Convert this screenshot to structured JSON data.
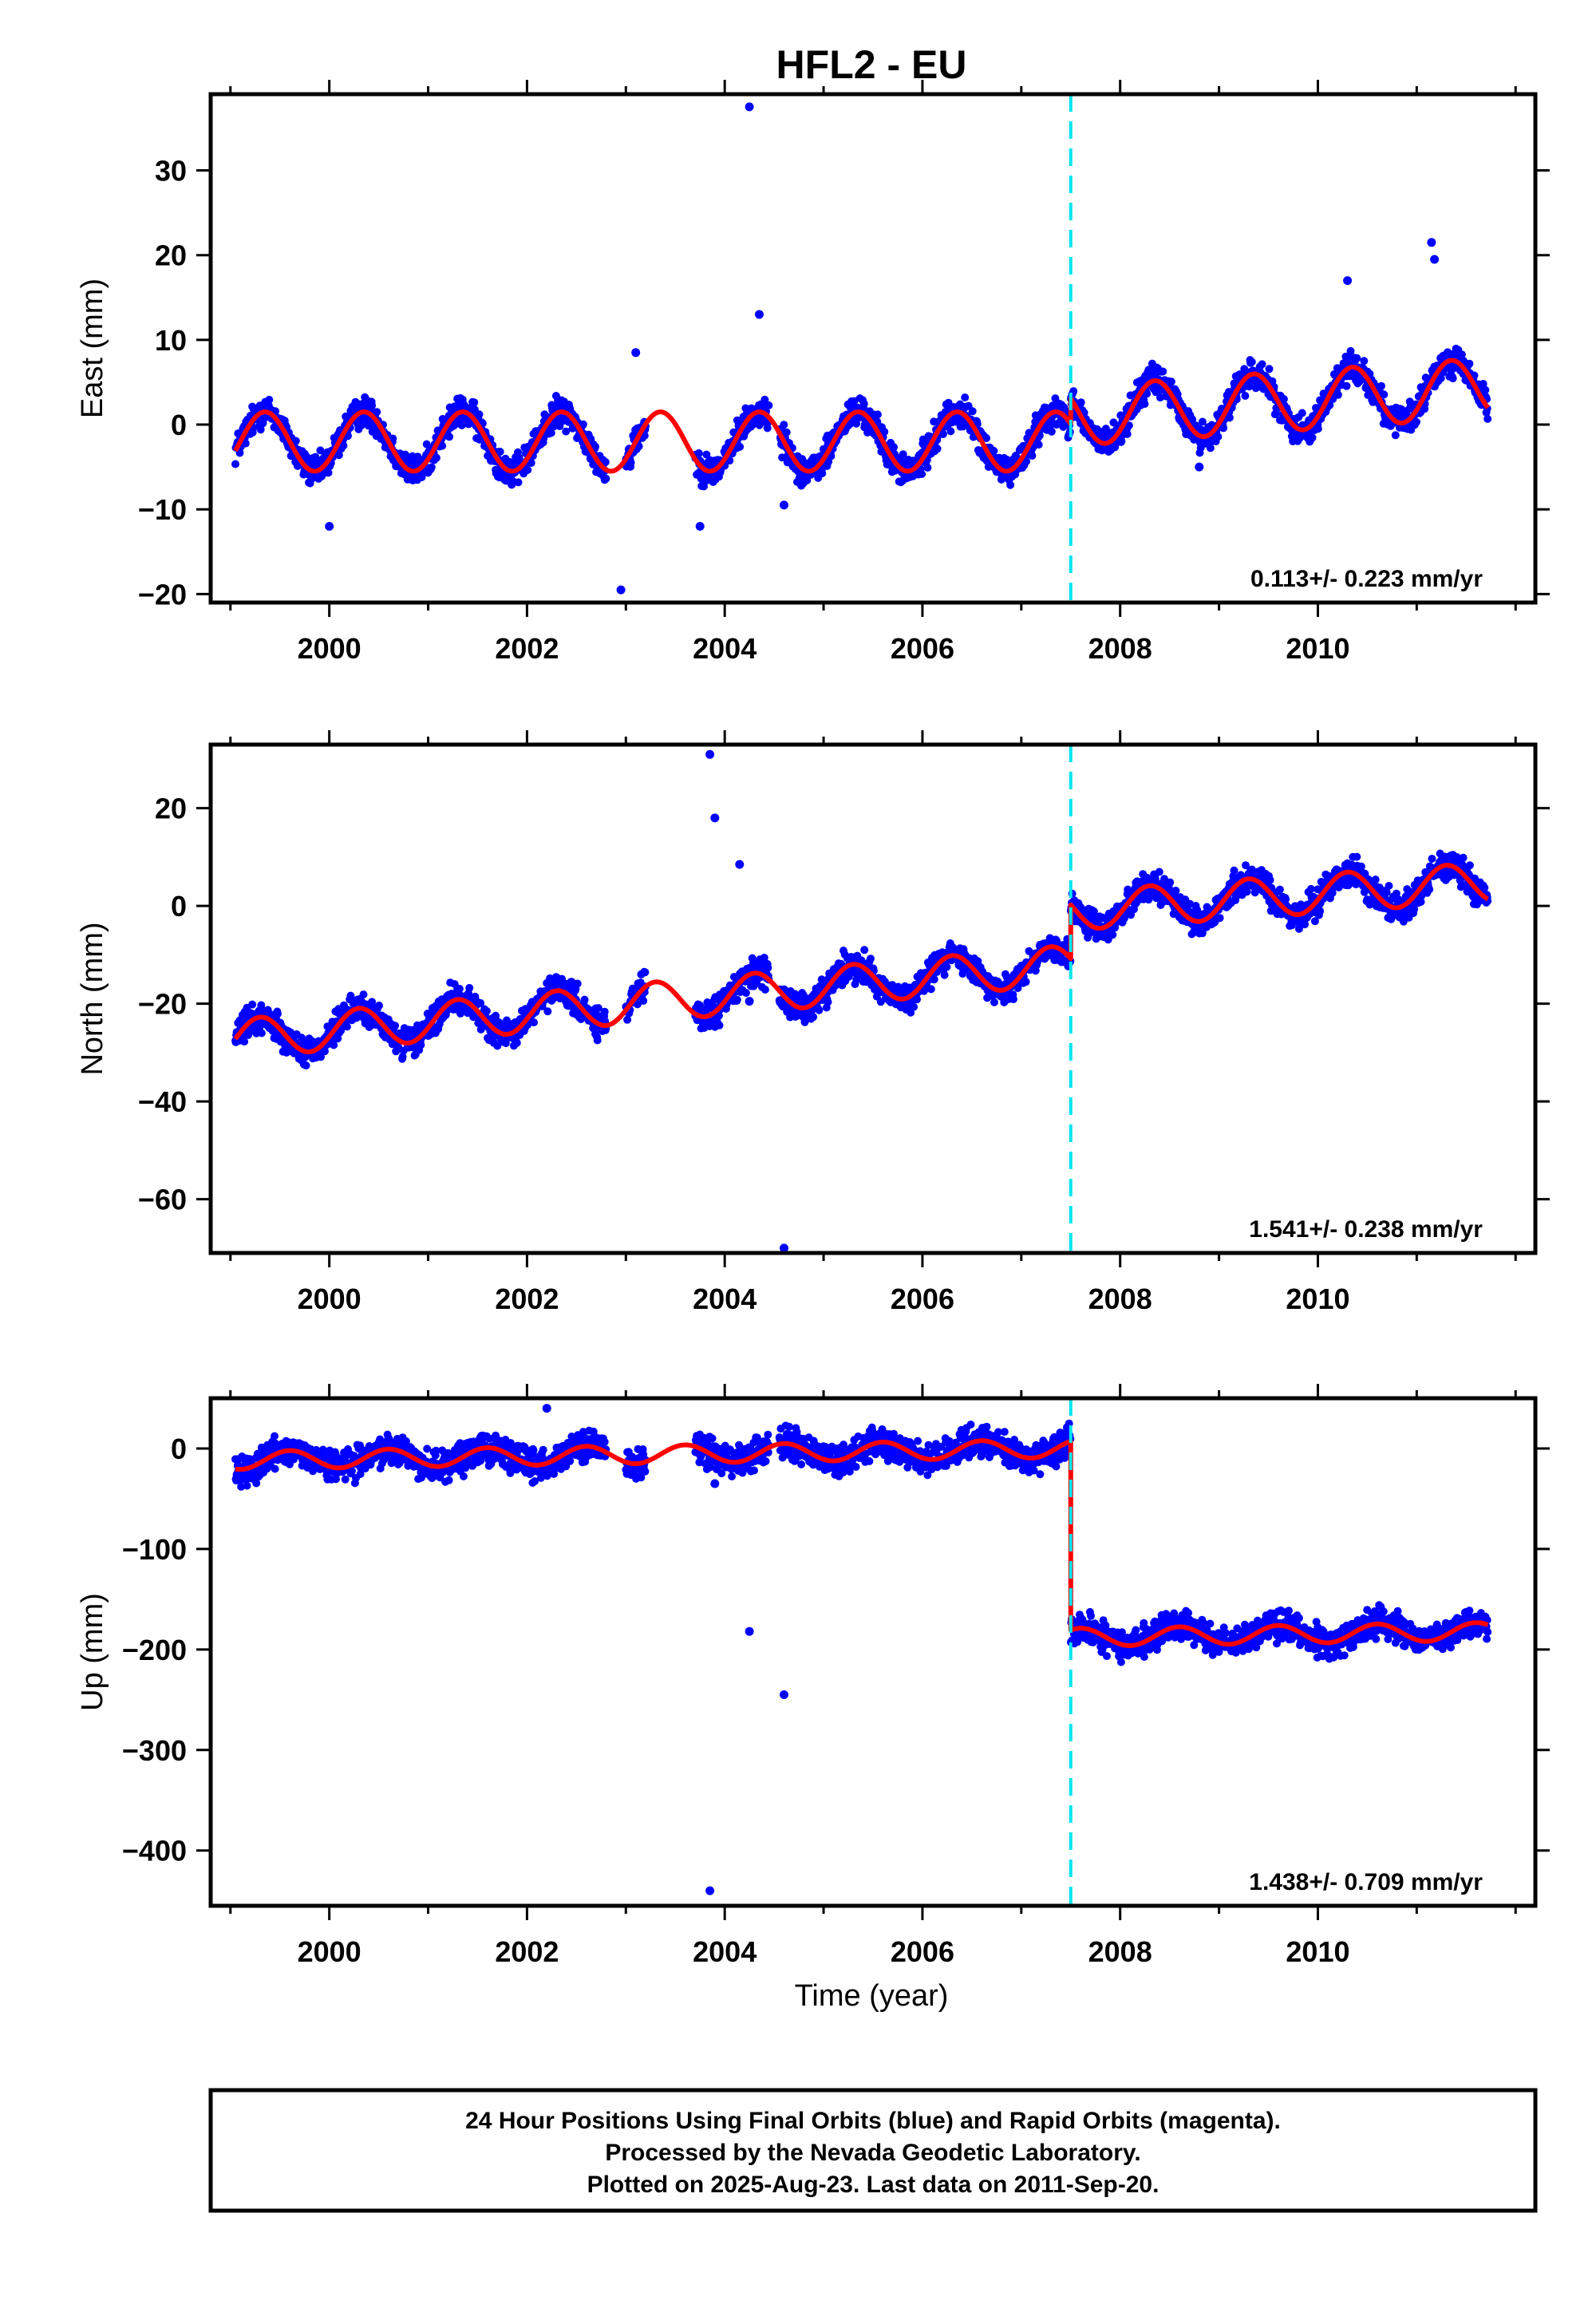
{
  "title": "HFL2 - EU",
  "xlabel": "Time (year)",
  "colors": {
    "points": "#0000ff",
    "model": "#ff0000",
    "break_line": "#00e5ee",
    "frame": "#000000"
  },
  "chart_data": [
    {
      "type": "scatter",
      "panel": "east",
      "ylabel": "East (mm)",
      "ylim": [
        -21,
        39
      ],
      "xlim": [
        1998.8,
        2012.2
      ],
      "yticks": [
        -20,
        -10,
        0,
        10,
        20,
        30
      ],
      "xticks": [
        2000,
        2002,
        2004,
        2006,
        2008,
        2010
      ],
      "rate_label": "0.113+/- 0.223 mm/yr",
      "break_epoch": 2007.5,
      "series": [
        {
          "name": "",
          "model": {
            "start": 1999.05,
            "end": 2011.72,
            "offset_before": -2.0,
            "offset_after": 1.0,
            "trend_before": 0.0,
            "trend_after": 0.8,
            "amplitude": 3.5,
            "peak_phase": 0.35
          }
        }
      ],
      "outliers": [
        [
          2004.25,
          37.5
        ],
        [
          2004.35,
          13.0
        ],
        [
          2002.95,
          -19.5
        ],
        [
          2003.1,
          8.5
        ],
        [
          2003.75,
          -12.0
        ],
        [
          2011.15,
          21.5
        ],
        [
          2011.18,
          19.5
        ],
        [
          2010.3,
          17.0
        ],
        [
          2008.8,
          -5.0
        ],
        [
          2000.0,
          -12.0
        ],
        [
          2004.6,
          -9.5
        ]
      ]
    },
    {
      "type": "scatter",
      "panel": "north",
      "ylabel": "North (mm)",
      "ylim": [
        -71,
        33
      ],
      "xlim": [
        1998.8,
        2012.2
      ],
      "yticks": [
        -60,
        -40,
        -20,
        0,
        20
      ],
      "xticks": [
        2000,
        2002,
        2004,
        2006,
        2008,
        2010
      ],
      "rate_label": "1.541+/- 0.238 mm/yr",
      "break_epoch": 2007.5,
      "series": [
        {
          "name": "",
          "model": {
            "start": 1999.05,
            "end": 2011.72,
            "offset_before": -12.0,
            "offset_after": -1.0,
            "trend_before": 1.8,
            "trend_after": 1.4,
            "amplitude": 4.0,
            "peak_phase": 0.3
          }
        }
      ],
      "outliers": [
        [
          2003.85,
          31.0
        ],
        [
          2003.9,
          18.0
        ],
        [
          2004.25,
          -19.5
        ],
        [
          2004.6,
          -70.0
        ],
        [
          2004.15,
          8.5
        ]
      ]
    },
    {
      "type": "scatter",
      "panel": "up",
      "ylabel": "Up (mm)",
      "ylim": [
        -455,
        50
      ],
      "xlim": [
        1998.8,
        2012.2
      ],
      "yticks": [
        -400,
        -300,
        -200,
        -100,
        0
      ],
      "xticks": [
        2000,
        2002,
        2004,
        2006,
        2008,
        2010
      ],
      "rate_label": "1.438+/- 0.709 mm/yr",
      "break_epoch": 2007.5,
      "series": [
        {
          "name": "",
          "model": {
            "start": 1999.05,
            "end": 2011.72,
            "offset_before": 0.0,
            "offset_after": -188.0,
            "trend_before": 1.4,
            "trend_after": 1.4,
            "amplitude": 9.0,
            "peak_phase": 0.6
          }
        }
      ],
      "outliers": [
        [
          2003.85,
          -440.0
        ],
        [
          2004.25,
          -182.0
        ],
        [
          2004.6,
          -245.0
        ],
        [
          2002.2,
          40.0
        ],
        [
          2003.9,
          -35.0
        ]
      ]
    }
  ],
  "footer": {
    "line1": "24 Hour Positions Using Final Orbits (blue) and Rapid Orbits (magenta).",
    "line2": "Processed by the Nevada Geodetic Laboratory.",
    "line3": "Plotted on 2025-Aug-23. Last data on 2011-Sep-20."
  }
}
